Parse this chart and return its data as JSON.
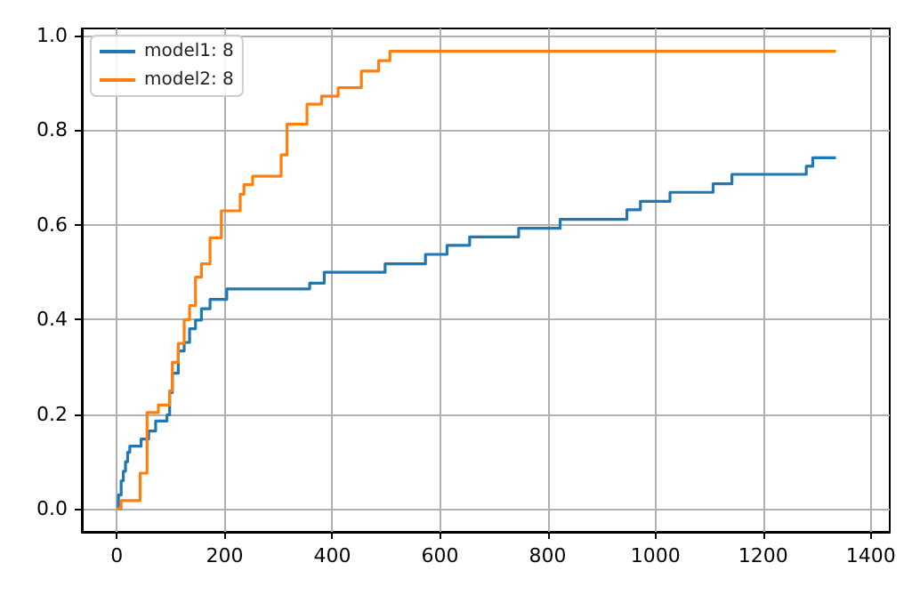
{
  "chart_data": {
    "type": "step",
    "legend": "top left",
    "grid": true,
    "xlim": [
      -65,
      1435
    ],
    "ylim": [
      -0.048,
      1.015
    ],
    "xticks": [
      0,
      200,
      400,
      600,
      800,
      1000,
      1200,
      1400
    ],
    "yticks": [
      {
        "value": 0,
        "label": "0.0"
      },
      {
        "value": 0.2,
        "label": "0.2"
      },
      {
        "value": 0.4,
        "label": "0.4"
      },
      {
        "value": 0.6,
        "label": "0.6"
      },
      {
        "value": 0.8,
        "label": "0.8"
      },
      {
        "value": 1,
        "label": "1.0"
      }
    ],
    "series": [
      {
        "name": "model1: 8",
        "color": "#1f77b4",
        "x": [
          0,
          3,
          8,
          12,
          16,
          20,
          24,
          45,
          59,
          72,
          93,
          98,
          103,
          114,
          125,
          135,
          146,
          157,
          173,
          204,
          358,
          385,
          498,
          573,
          613,
          655,
          746,
          823,
          947,
          972,
          1027,
          1107,
          1142,
          1280,
          1292,
          1335
        ],
        "values": [
          0.006,
          0.03,
          0.06,
          0.08,
          0.1,
          0.12,
          0.133,
          0.148,
          0.165,
          0.186,
          0.199,
          0.246,
          0.287,
          0.334,
          0.352,
          0.381,
          0.399,
          0.423,
          0.443,
          0.465,
          0.477,
          0.5,
          0.518,
          0.538,
          0.557,
          0.575,
          0.593,
          0.612,
          0.632,
          0.65,
          0.669,
          0.687,
          0.707,
          0.724,
          0.742,
          0.742
        ]
      },
      {
        "name": "model2: 8",
        "color": "#ff7f0e",
        "x": [
          0,
          8,
          43,
          56,
          77,
          98,
          103,
          114,
          125,
          135,
          146,
          157,
          173,
          194,
          229,
          236,
          252,
          305,
          316,
          353,
          380,
          411,
          454,
          486,
          507,
          1335
        ],
        "values": [
          0,
          0.018,
          0.076,
          0.204,
          0.22,
          0.25,
          0.31,
          0.35,
          0.4,
          0.43,
          0.49,
          0.518,
          0.573,
          0.63,
          0.665,
          0.685,
          0.703,
          0.748,
          0.813,
          0.855,
          0.872,
          0.89,
          0.925,
          0.947,
          0.967,
          0.967
        ]
      }
    ]
  }
}
